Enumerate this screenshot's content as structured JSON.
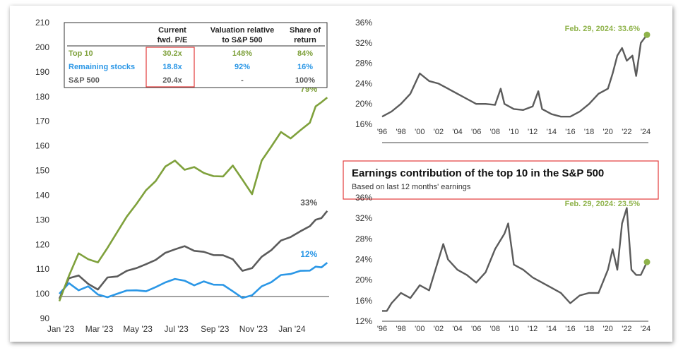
{
  "chart_data": [
    {
      "type": "line",
      "name": "index-performance",
      "xlabel": "",
      "ylabel": "",
      "ylim": [
        90,
        210
      ],
      "y_ticks": [
        90,
        100,
        110,
        120,
        130,
        140,
        150,
        160,
        170,
        180,
        190,
        200,
        210
      ],
      "x_ticks": [
        "Jan '23",
        "Mar '23",
        "May '23",
        "Jul '23",
        "Sep '23",
        "Nov '23",
        "Jan '24"
      ],
      "x_range": [
        0,
        14
      ],
      "x": [
        0,
        0.5,
        1,
        1.5,
        2,
        2.5,
        3,
        3.5,
        4,
        4.5,
        5,
        5.5,
        6,
        6.5,
        7,
        7.5,
        8,
        8.5,
        9,
        9.5,
        10,
        10.5,
        11,
        11.5,
        12,
        12.5,
        13,
        13.3,
        13.6,
        13.9
      ],
      "series": [
        {
          "name": "Top 10",
          "color": "#7fa13c",
          "end_label": "79%",
          "values": [
            97,
            107,
            117,
            114,
            113,
            118,
            125,
            131,
            137,
            142,
            146,
            151,
            154,
            150,
            152,
            149,
            148,
            147,
            152,
            146,
            141,
            154,
            160,
            165,
            163,
            166,
            170,
            176,
            178,
            179
          ]
        },
        {
          "name": "Remaining stocks",
          "color": "#2b97e6",
          "end_label": "12%",
          "values": [
            100,
            104,
            102,
            103,
            100,
            98,
            100,
            101,
            102,
            101,
            103,
            104,
            106,
            105,
            104,
            105,
            104,
            103,
            101,
            98,
            100,
            103,
            105,
            107,
            108,
            109,
            110,
            111,
            111,
            112
          ]
        },
        {
          "name": "S&P 500",
          "color": "#5b5b5b",
          "end_label": "33%",
          "values": [
            98,
            106,
            108,
            104,
            102,
            106,
            107,
            109,
            111,
            112,
            114,
            116,
            118,
            119,
            118,
            117,
            116,
            115,
            114,
            109,
            111,
            115,
            118,
            121,
            123,
            125,
            128,
            130,
            131,
            133
          ]
        }
      ],
      "table": {
        "headers": [
          "",
          "Current fwd. P/E",
          "Valuation relative to S&P 500",
          "Share of return"
        ],
        "rows": [
          {
            "name": "Top 10",
            "pe": "30.2x",
            "rel": "148%",
            "share": "84%",
            "color": "#7fa13c"
          },
          {
            "name": "Remaining stocks",
            "pe": "18.8x",
            "rel": "92%",
            "share": "16%",
            "color": "#2b97e6"
          },
          {
            "name": "S&P 500",
            "pe": "20.4x",
            "rel": "-",
            "share": "100%",
            "color": "#5b5b5b"
          }
        ]
      }
    },
    {
      "type": "line",
      "name": "forward-pe-share",
      "ylim": [
        16,
        36
      ],
      "y_ticks": [
        "16%",
        "20%",
        "24%",
        "28%",
        "32%",
        "36%"
      ],
      "y_tick_values": [
        16,
        20,
        24,
        28,
        32,
        36
      ],
      "x_ticks": [
        "'96",
        "'98",
        "'00",
        "'02",
        "'04",
        "'06",
        "'08",
        "'10",
        "'12",
        "'14",
        "'16",
        "'18",
        "'20",
        "'22",
        "'24"
      ],
      "x_range": [
        1996,
        2024.3
      ],
      "annotation": "Feb. 29, 2024: 33.6%",
      "x": [
        1996,
        1997,
        1998,
        1999,
        2000,
        2001,
        2002,
        2003,
        2004,
        2005,
        2006,
        2007,
        2008,
        2008.6,
        2009,
        2010,
        2011,
        2012,
        2012.6,
        2013,
        2014,
        2015,
        2016,
        2017,
        2018,
        2019,
        2020,
        2020.5,
        2021,
        2021.5,
        2022,
        2022.6,
        2023,
        2023.5,
        2024.15
      ],
      "values": [
        17.5,
        18.5,
        20,
        22,
        26,
        24.5,
        24,
        23,
        22,
        21,
        20,
        20,
        19.8,
        23,
        20,
        19,
        18.8,
        19.5,
        22.5,
        19,
        18,
        17.5,
        17.5,
        18.5,
        20,
        22,
        23,
        26,
        29.5,
        31,
        28.5,
        29.5,
        25.5,
        32,
        33.6
      ],
      "series_color": "#5b5b5b",
      "marker_color": "#8fb34b"
    },
    {
      "type": "line",
      "name": "earnings-contribution",
      "title": "Earnings contribution of the top 10 in the S&P 500",
      "subtitle": "Based on last 12 months' earnings",
      "ylim": [
        12,
        36
      ],
      "y_ticks": [
        "12%",
        "16%",
        "20%",
        "24%",
        "28%",
        "32%",
        "36%"
      ],
      "y_tick_values": [
        12,
        16,
        20,
        24,
        28,
        32,
        36
      ],
      "x_ticks": [
        "'96",
        "'98",
        "'00",
        "'02",
        "'04",
        "'06",
        "'08",
        "'10",
        "'12",
        "'14",
        "'16",
        "'18",
        "'20",
        "'22",
        "'24"
      ],
      "x_range": [
        1996,
        2024.3
      ],
      "annotation": "Feb. 29, 2024: 23.5%",
      "x": [
        1996,
        1996.5,
        1997,
        1998,
        1999,
        2000,
        2001,
        2002,
        2002.5,
        2003,
        2004,
        2005,
        2006,
        2007,
        2008,
        2009,
        2009.4,
        2010,
        2011,
        2012,
        2013,
        2014,
        2015,
        2016,
        2017,
        2018,
        2019,
        2020,
        2020.5,
        2021,
        2021.5,
        2022,
        2022.5,
        2023,
        2023.5,
        2024.15
      ],
      "values": [
        14,
        14,
        15.5,
        17.5,
        16.5,
        19,
        18,
        24,
        27,
        24,
        22,
        21,
        19.5,
        21.5,
        26,
        29,
        31,
        23,
        22,
        20.5,
        19.5,
        18.5,
        17.5,
        15.5,
        17,
        17.5,
        17.5,
        22,
        26,
        22,
        31,
        34,
        22,
        21,
        21,
        23.5
      ],
      "series_color": "#5b5b5b",
      "marker_color": "#8fb34b"
    }
  ]
}
